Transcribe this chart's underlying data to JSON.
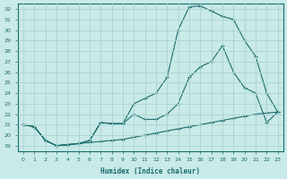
{
  "xlabel": "Humidex (Indice chaleur)",
  "bg_color": "#c8eae8",
  "grid_color": "#aad4d0",
  "line_color": "#1a6b6b",
  "xlim": [
    -0.5,
    23.5
  ],
  "ylim": [
    18.5,
    32.5
  ],
  "x_ticks": [
    0,
    1,
    2,
    3,
    4,
    5,
    6,
    7,
    8,
    9,
    10,
    11,
    12,
    13,
    14,
    15,
    16,
    17,
    18,
    19,
    20,
    21,
    22,
    23
  ],
  "y_ticks": [
    19,
    20,
    21,
    22,
    23,
    24,
    25,
    26,
    27,
    28,
    29,
    30,
    31,
    32
  ],
  "line1_x": [
    0,
    1,
    2,
    3,
    4,
    5,
    6,
    7,
    8,
    9,
    10,
    11,
    12,
    13,
    14,
    15,
    16,
    17,
    18,
    19,
    20,
    21,
    22,
    23
  ],
  "line1_y": [
    21.0,
    20.8,
    19.5,
    19.0,
    19.1,
    19.2,
    19.3,
    19.4,
    19.5,
    19.6,
    19.8,
    20.0,
    20.2,
    20.4,
    20.6,
    20.8,
    21.0,
    21.2,
    21.4,
    21.6,
    21.8,
    22.0,
    22.1,
    22.2
  ],
  "line2_x": [
    0,
    1,
    2,
    3,
    4,
    5,
    6,
    7,
    8,
    9,
    10,
    11,
    12,
    13,
    14,
    15,
    16,
    17,
    18,
    19,
    20,
    21,
    22,
    23
  ],
  "line2_y": [
    21.0,
    20.8,
    19.5,
    19.0,
    19.1,
    19.2,
    19.5,
    21.2,
    21.1,
    21.1,
    22.0,
    21.5,
    21.5,
    22.0,
    23.0,
    25.5,
    26.5,
    27.0,
    28.5,
    26.0,
    24.5,
    24.0,
    21.2,
    22.2
  ],
  "line3_x": [
    0,
    1,
    2,
    3,
    4,
    5,
    6,
    7,
    8,
    9,
    10,
    11,
    12,
    13,
    14,
    15,
    16,
    17,
    18,
    19,
    20,
    21,
    22,
    23
  ],
  "line3_y": [
    21.0,
    20.8,
    19.5,
    19.0,
    19.1,
    19.2,
    19.5,
    21.2,
    21.1,
    21.1,
    23.0,
    23.5,
    24.0,
    25.5,
    30.0,
    32.2,
    32.3,
    31.8,
    31.3,
    31.0,
    29.0,
    27.5,
    24.0,
    22.2
  ]
}
